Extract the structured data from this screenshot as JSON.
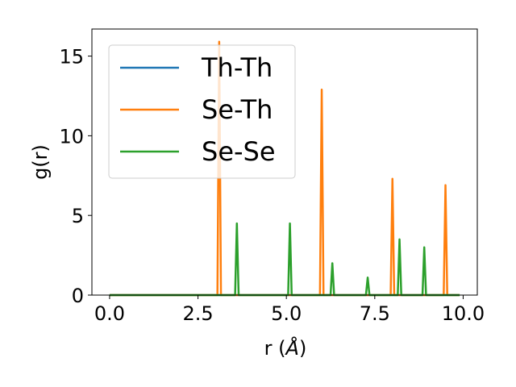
{
  "chart_data": {
    "type": "line",
    "xlabel": "r (",
    "xlabel_unit": "Å",
    "xlabel_close": ")",
    "ylabel": "g(r)",
    "xlim": [
      -0.5,
      10.4
    ],
    "ylim": [
      0,
      16.7
    ],
    "xticks": [
      0.0,
      2.5,
      5.0,
      7.5,
      10.0
    ],
    "xtick_labels": [
      "0.0",
      "2.5",
      "5.0",
      "7.5",
      "10.0"
    ],
    "yticks": [
      0,
      5,
      10,
      15
    ],
    "ytick_labels": [
      "0",
      "5",
      "10",
      "15"
    ],
    "grid": false,
    "legend_position": "top-left",
    "x_range": [
      0.0,
      9.9
    ],
    "series": [
      {
        "name": "Th-Th",
        "color": "#1f77b4",
        "baseline": 0,
        "peaks": []
      },
      {
        "name": "Se-Th",
        "color": "#ff7f0e",
        "baseline": 0,
        "peaks": [
          {
            "x": 3.1,
            "y": 15.9
          },
          {
            "x": 6.0,
            "y": 12.9
          },
          {
            "x": 8.0,
            "y": 7.3
          },
          {
            "x": 9.5,
            "y": 6.9
          }
        ]
      },
      {
        "name": "Se-Se",
        "color": "#2ca02c",
        "baseline": 0,
        "peaks": [
          {
            "x": 3.6,
            "y": 4.5
          },
          {
            "x": 5.1,
            "y": 4.5
          },
          {
            "x": 6.3,
            "y": 2.0
          },
          {
            "x": 7.3,
            "y": 1.1
          },
          {
            "x": 8.2,
            "y": 3.5
          },
          {
            "x": 8.9,
            "y": 3.0
          }
        ]
      }
    ]
  }
}
